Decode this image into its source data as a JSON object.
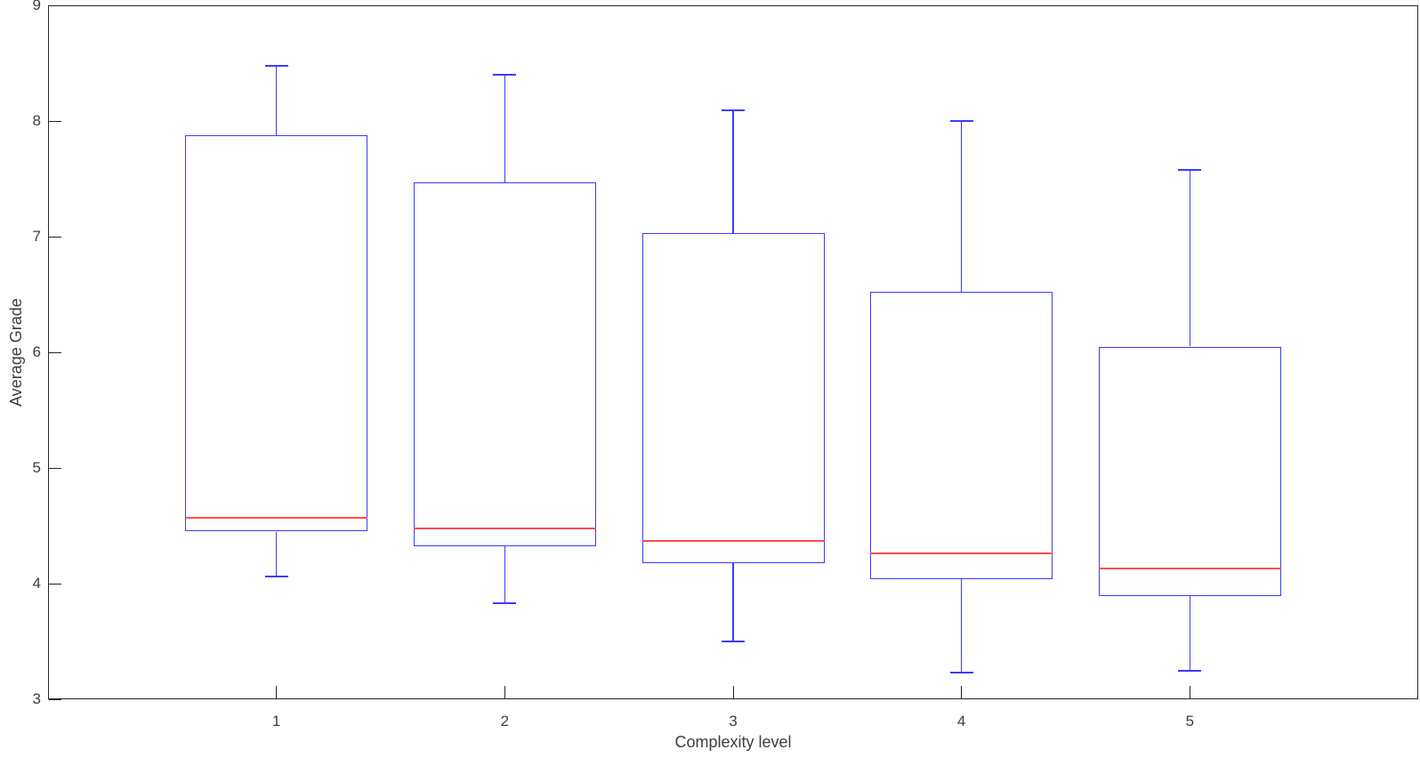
{
  "chart_data": {
    "type": "boxplot",
    "title": "",
    "xlabel": "Complexity level",
    "ylabel": "Average Grade",
    "categories": [
      "1",
      "2",
      "3",
      "4",
      "5"
    ],
    "x_ticks": [
      1,
      2,
      3,
      4,
      5
    ],
    "y_ticks": [
      3,
      4,
      5,
      6,
      7,
      8,
      9
    ],
    "xlim": [
      0,
      6
    ],
    "ylim": [
      3,
      9
    ],
    "grid": false,
    "legend": "none",
    "boxes": [
      {
        "x": 1,
        "whisker_low": 4.06,
        "q1": 4.45,
        "median": 4.57,
        "q3": 7.88,
        "whisker_high": 8.48
      },
      {
        "x": 2,
        "whisker_low": 3.83,
        "q1": 4.32,
        "median": 4.48,
        "q3": 7.47,
        "whisker_high": 8.4
      },
      {
        "x": 3,
        "whisker_low": 3.5,
        "q1": 4.18,
        "median": 4.37,
        "q3": 7.03,
        "whisker_high": 8.09
      },
      {
        "x": 4,
        "whisker_low": 3.23,
        "q1": 4.04,
        "median": 4.26,
        "q3": 6.52,
        "whisker_high": 8.0
      },
      {
        "x": 5,
        "whisker_low": 3.25,
        "q1": 3.89,
        "median": 4.13,
        "q3": 6.05,
        "whisker_high": 7.58
      }
    ],
    "colors": {
      "box": "#3c3cff",
      "median": "#ff4d4d",
      "axis": "#262626",
      "tick_label": "#3d3d3d"
    }
  }
}
